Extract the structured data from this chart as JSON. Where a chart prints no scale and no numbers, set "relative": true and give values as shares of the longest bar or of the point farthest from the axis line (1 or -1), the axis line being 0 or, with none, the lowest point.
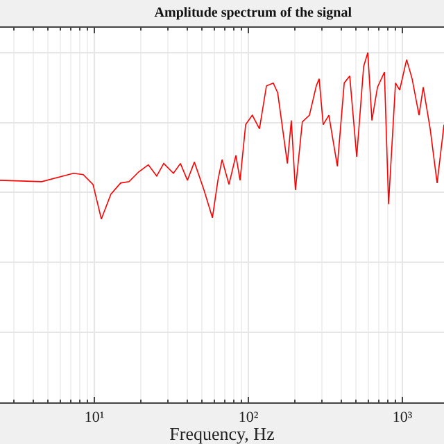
{
  "chart_data": {
    "type": "line",
    "title": "Amplitude spectrum of the signal",
    "xlabel": "Frequency, Hz",
    "relative": true,
    "log": "x",
    "grid": true,
    "marker": "none",
    "line_style": "solid",
    "xlim": [
      2.44,
      1862
    ],
    "xticks": [
      {
        "value": 10,
        "label": "10¹"
      },
      {
        "value": 100,
        "label": "10²"
      },
      {
        "value": 1000,
        "label": "10³"
      }
    ],
    "x": [
      2.44,
      4.55,
      7.33,
      8.47,
      9.8,
      11.1,
      12.8,
      14.8,
      16.8,
      19.4,
      22.4,
      25.4,
      28.2,
      32.6,
      36.2,
      40.2,
      44.6,
      51.5,
      58.4,
      63.4,
      67.5,
      74.8,
      83.0,
      88.3,
      96,
      106,
      118,
      131,
      145,
      155,
      164,
      179,
      190,
      202,
      224,
      249,
      276,
      288,
      306,
      333,
      378,
      419,
      455,
      505,
      560,
      596,
      634,
      689,
      764,
      813,
      902,
      960,
      1065,
      1156,
      1282,
      1365,
      1514,
      1680,
      1862
    ],
    "series": [
      {
        "color": "#ff0000",
        "values": [
          0.635,
          0.631,
          0.655,
          0.651,
          0.623,
          0.524,
          0.595,
          0.627,
          0.631,
          0.659,
          0.679,
          0.647,
          0.683,
          0.655,
          0.683,
          0.635,
          0.687,
          0.607,
          0.528,
          0.635,
          0.694,
          0.623,
          0.706,
          0.635,
          0.794,
          0.821,
          0.782,
          0.905,
          0.913,
          0.885,
          0.806,
          0.683,
          0.806,
          0.607,
          0.802,
          0.821,
          0.905,
          0.925,
          0.794,
          0.821,
          0.675,
          0.913,
          0.933,
          0.702,
          0.96,
          1,
          0.806,
          0.901,
          0.944,
          0.567,
          0.913,
          0.893,
          0.98,
          0.925,
          0.821,
          0.901,
          0.782,
          0.627,
          0.794
        ]
      }
    ]
  }
}
